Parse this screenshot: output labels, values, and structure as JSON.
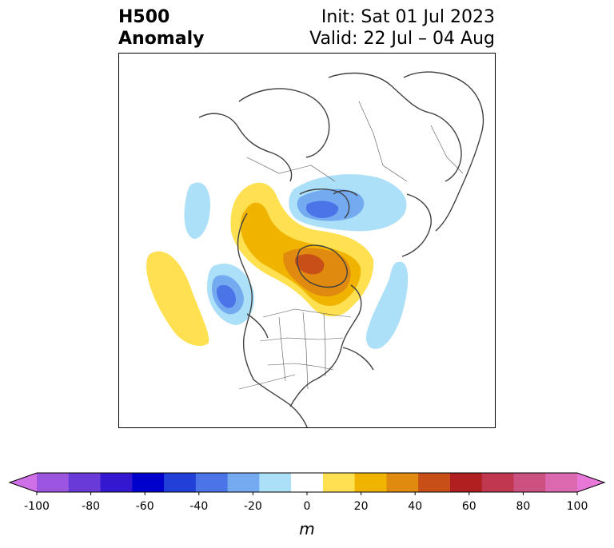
{
  "header": {
    "title_line1": "H500",
    "title_line2": "Anomaly",
    "init_text": "Init: Sat 01 Jul 2023",
    "valid_text": "Valid: 22 Jul – 04 Aug"
  },
  "colorbar": {
    "unit": "m",
    "tick_labels": [
      "-100",
      "-80",
      "-60",
      "-40",
      "-20",
      "0",
      "20",
      "40",
      "60",
      "80",
      "100"
    ],
    "colors": [
      "#d070e8",
      "#9c55e0",
      "#6a3ad8",
      "#3418d0",
      "#0000cc",
      "#2040d8",
      "#4a74e8",
      "#74aaf0",
      "#ace0f8",
      "#ffffff",
      "#ffe050",
      "#f0b400",
      "#e08a10",
      "#c85018",
      "#b02020",
      "#c03850",
      "#cc5080",
      "#dc68b0",
      "#e878d8"
    ]
  },
  "map": {
    "positive_colors": [
      "#ffe050",
      "#f0b400",
      "#e08a10",
      "#c85018"
    ],
    "negative_colors": [
      "#ace0f8",
      "#74aaf0",
      "#4a74e8"
    ]
  }
}
